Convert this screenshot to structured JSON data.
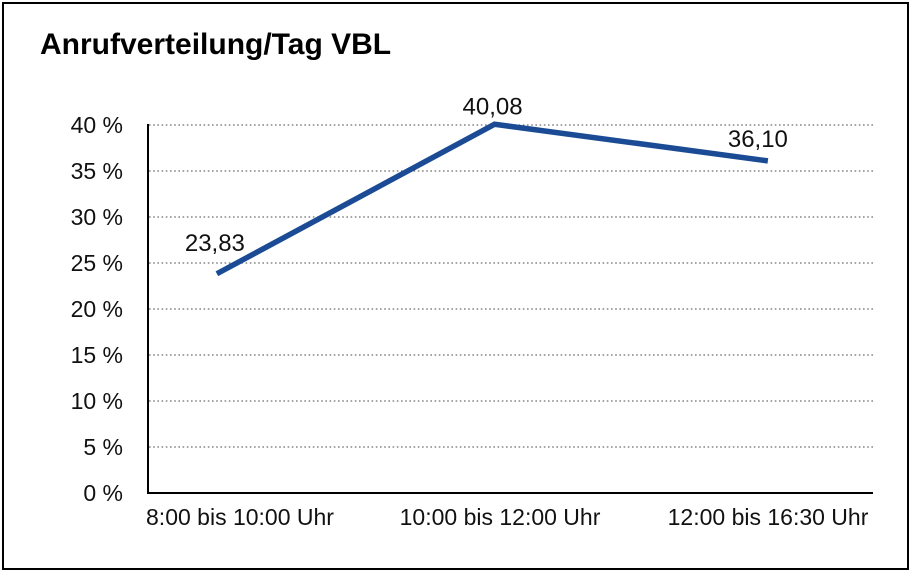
{
  "chart": {
    "title": "Anrufverteilung/Tag VBL"
  },
  "chart_data": {
    "type": "line",
    "title": "Anrufverteilung/Tag VBL",
    "categories": [
      "8:00 bis 10:00 Uhr",
      "10:00 bis 12:00 Uhr",
      "12:00 bis 16:30 Uhr"
    ],
    "values": [
      23.83,
      40.08,
      36.1
    ],
    "data_labels": [
      "23,83",
      "40,08",
      "36,10"
    ],
    "series_name": "Anrufverteilung",
    "xlabel": "",
    "ylabel": "",
    "ylim": [
      0,
      40
    ],
    "ytick_step": 5,
    "ytick_labels": [
      "0 %",
      "5 %",
      "10 %",
      "15 %",
      "20 %",
      "25 %",
      "30 %",
      "35 %",
      "40 %"
    ],
    "ytick_suffix": " %",
    "grid": "horizontal-dotted",
    "legend": "none",
    "markers": "none",
    "line_color": "#1a4b94",
    "grid_color": "#6e6e6e",
    "axis_color": "#000000",
    "text_color": "#111111",
    "background_color": "#ffffff"
  }
}
